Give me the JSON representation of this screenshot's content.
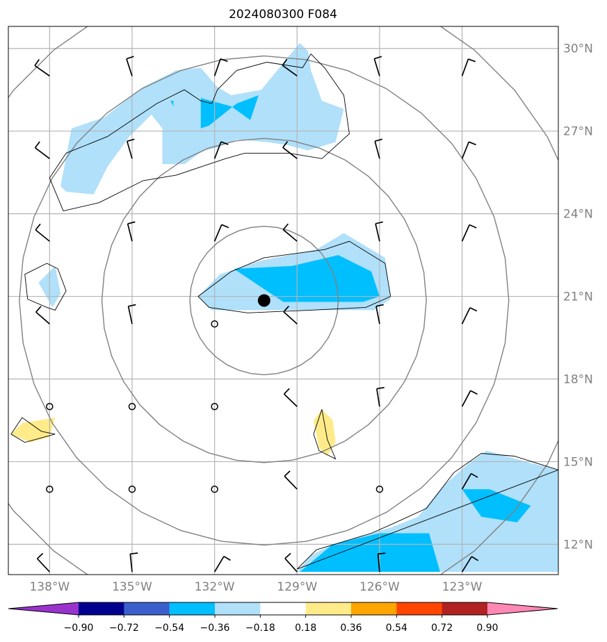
{
  "chart_data": {
    "type": "map",
    "title": "2024080300 F084",
    "map": {
      "lon_range": [
        -139.5,
        -119.5
      ],
      "lat_range": [
        10.9,
        30.8
      ],
      "lat_ticks": [
        {
          "lat": 30,
          "label": "30°N"
        },
        {
          "lat": 27,
          "label": "27°N"
        },
        {
          "lat": 24,
          "label": "24°N"
        },
        {
          "lat": 21,
          "label": "21°N"
        },
        {
          "lat": 18,
          "label": "18°N"
        },
        {
          "lat": 15,
          "label": "15°N"
        },
        {
          "lat": 12,
          "label": "12°N"
        }
      ],
      "lon_ticks": [
        {
          "lon": -138,
          "label": "138°W"
        },
        {
          "lon": -135,
          "label": "135°W"
        },
        {
          "lon": -132,
          "label": "132°W"
        },
        {
          "lon": -129,
          "label": "129°W"
        },
        {
          "lon": -126,
          "label": "126°W"
        },
        {
          "lon": -123,
          "label": "123°W"
        }
      ],
      "grid": true,
      "center": {
        "lon": -130.2,
        "lat": 20.85
      },
      "range_rings_deg": [
        2.7,
        5.9,
        8.9,
        11.9
      ]
    },
    "colorbar": {
      "ticks": [
        "−0.90",
        "−0.72",
        "−0.54",
        "−0.36",
        "−0.18",
        "0.18",
        "0.36",
        "0.54",
        "0.72",
        "0.90"
      ],
      "colors": [
        "#9933cc",
        "#000090",
        "#3a5fcd",
        "#00bfff",
        "#b0e0fa",
        "#ffffff",
        "#ffeb8a",
        "#ffa500",
        "#ff4500",
        "#b22222",
        "#ff88b4"
      ],
      "extend": "both"
    },
    "fields": [
      {
        "level": "-0.36",
        "color": "#b0e0fa",
        "polygons": [
          [
            [
              -137.6,
              25.0
            ],
            [
              -137.2,
              27.1
            ],
            [
              -136.0,
              27.5
            ],
            [
              -134.6,
              28.6
            ],
            [
              -133.4,
              29.2
            ],
            [
              -132.5,
              29.3
            ],
            [
              -131.9,
              28.6
            ],
            [
              -131.4,
              28.3
            ],
            [
              -130.3,
              28.5
            ],
            [
              -129.4,
              29.6
            ],
            [
              -128.9,
              30.2
            ],
            [
              -128.6,
              29.9
            ],
            [
              -128.5,
              29.2
            ],
            [
              -128.1,
              28.1
            ],
            [
              -127.3,
              27.8
            ],
            [
              -127.6,
              26.6
            ],
            [
              -128.6,
              26.3
            ],
            [
              -129.4,
              26.5
            ],
            [
              -130.1,
              26.6
            ],
            [
              -131.2,
              26.7
            ],
            [
              -131.9,
              26.4
            ],
            [
              -132.4,
              26.3
            ],
            [
              -133.1,
              25.8
            ],
            [
              -133.9,
              25.8
            ],
            [
              -133.9,
              27.1
            ],
            [
              -134.3,
              27.6
            ],
            [
              -135.1,
              26.8
            ],
            [
              -135.9,
              25.7
            ],
            [
              -136.4,
              24.7
            ],
            [
              -137.4,
              24.8
            ]
          ],
          [
            [
              -138.4,
              21.5
            ],
            [
              -137.9,
              20.6
            ],
            [
              -137.6,
              21.1
            ],
            [
              -137.8,
              22.1
            ]
          ],
          [
            [
              -132.6,
              21.0
            ],
            [
              -131.8,
              21.8
            ],
            [
              -130.3,
              22.3
            ],
            [
              -128.3,
              22.7
            ],
            [
              -127.3,
              23.3
            ],
            [
              -125.8,
              22.4
            ],
            [
              -125.6,
              20.9
            ],
            [
              -126.2,
              20.5
            ],
            [
              -128.0,
              20.5
            ],
            [
              -130.3,
              20.5
            ],
            [
              -132.1,
              20.5
            ]
          ],
          [
            [
              -129.0,
              11.0
            ],
            [
              -128.5,
              11.6
            ],
            [
              -127.7,
              12.0
            ],
            [
              -126.7,
              12.3
            ],
            [
              -125.6,
              12.6
            ],
            [
              -124.6,
              13.0
            ],
            [
              -123.7,
              14.1
            ],
            [
              -122.8,
              14.9
            ],
            [
              -122.1,
              15.4
            ],
            [
              -120.7,
              15.0
            ],
            [
              -119.5,
              14.7
            ],
            [
              -119.5,
              11.0
            ]
          ]
        ]
      },
      {
        "level": "-0.54",
        "color": "#00bfff",
        "polygons": [
          [
            [
              -132.5,
              28.2
            ],
            [
              -131.4,
              27.9
            ],
            [
              -130.7,
              27.4
            ],
            [
              -130.4,
              28.3
            ],
            [
              -131.2,
              28.0
            ],
            [
              -132.2,
              27.2
            ],
            [
              -132.5,
              27.1
            ]
          ],
          [
            [
              -133.6,
              28.1
            ],
            [
              -133.5,
              27.9
            ],
            [
              -133.5,
              28.1
            ]
          ],
          [
            [
              -131.3,
              22.0
            ],
            [
              -129.2,
              22.1
            ],
            [
              -127.5,
              22.5
            ],
            [
              -126.3,
              21.9
            ],
            [
              -126.0,
              21.0
            ],
            [
              -126.6,
              20.8
            ],
            [
              -128.0,
              20.8
            ],
            [
              -129.5,
              20.8
            ]
          ],
          [
            [
              -128.9,
              11.0
            ],
            [
              -127.7,
              12.0
            ],
            [
              -126.0,
              12.4
            ],
            [
              -124.2,
              12.4
            ],
            [
              -123.8,
              11.0
            ]
          ],
          [
            [
              -123.0,
              14.0
            ],
            [
              -122.0,
              14.0
            ],
            [
              -120.5,
              13.4
            ],
            [
              -121.0,
              12.8
            ],
            [
              -122.3,
              13.0
            ]
          ]
        ]
      },
      {
        "level": "0.18",
        "color": "#ffeb8a",
        "polygons": [
          [
            [
              -139.4,
              16.0
            ],
            [
              -138.7,
              15.7
            ],
            [
              -138.0,
              15.9
            ],
            [
              -137.8,
              16.6
            ],
            [
              -139.0,
              16.4
            ]
          ],
          [
            [
              -128.1,
              16.9
            ],
            [
              -127.7,
              16.5
            ],
            [
              -127.6,
              15.7
            ],
            [
              -127.9,
              15.2
            ],
            [
              -128.2,
              15.5
            ],
            [
              -128.4,
              16.5
            ]
          ]
        ]
      }
    ],
    "outlines": [
      [
        [
          -137.5,
          24.1
        ],
        [
          -136.2,
          24.4
        ],
        [
          -134.6,
          25.2
        ],
        [
          -133.4,
          25.4
        ],
        [
          -132.5,
          25.7
        ],
        [
          -131.6,
          26.0
        ],
        [
          -130.9,
          26.2
        ],
        [
          -129.3,
          26.2
        ],
        [
          -128.1,
          26.0
        ],
        [
          -127.1,
          26.9
        ],
        [
          -127.3,
          28.3
        ],
        [
          -128.0,
          29.3
        ],
        [
          -128.5,
          29.8
        ],
        [
          -128.8,
          29.3
        ],
        [
          -130.1,
          29.5
        ],
        [
          -131.2,
          29.2
        ],
        [
          -131.9,
          28.5
        ],
        [
          -132.1,
          28.0
        ],
        [
          -132.5,
          28.1
        ],
        [
          -133.1,
          28.5
        ],
        [
          -134.1,
          28.0
        ],
        [
          -135.0,
          27.4
        ],
        [
          -135.9,
          26.8
        ],
        [
          -137.4,
          26.2
        ],
        [
          -138.0,
          25.3
        ]
      ],
      [
        [
          -138.8,
          20.9
        ],
        [
          -138.1,
          20.6
        ],
        [
          -137.8,
          20.5
        ],
        [
          -137.4,
          21.2
        ],
        [
          -137.7,
          22.0
        ],
        [
          -138.1,
          22.2
        ],
        [
          -138.9,
          21.8
        ]
      ],
      [
        [
          -132.6,
          21.0
        ],
        [
          -131.4,
          21.9
        ],
        [
          -130.2,
          22.4
        ],
        [
          -128.0,
          22.7
        ],
        [
          -127.1,
          23.0
        ],
        [
          -125.8,
          22.2
        ],
        [
          -125.6,
          21.0
        ],
        [
          -126.5,
          20.6
        ],
        [
          -128.5,
          20.5
        ],
        [
          -130.8,
          20.4
        ],
        [
          -132.2,
          20.6
        ]
      ],
      [
        [
          -139.4,
          16.0
        ],
        [
          -139.0,
          16.6
        ],
        [
          -138.3,
          16.1
        ],
        [
          -137.8,
          16.0
        ],
        [
          -138.9,
          15.7
        ]
      ],
      [
        [
          -127.6,
          15.1
        ],
        [
          -127.9,
          15.8
        ],
        [
          -128.1,
          16.9
        ],
        [
          -128.4,
          16.0
        ],
        [
          -128.2,
          15.4
        ]
      ],
      [
        [
          -129.0,
          11.1
        ],
        [
          -128.3,
          11.8
        ],
        [
          -126.3,
          12.4
        ],
        [
          -125.4,
          12.8
        ],
        [
          -124.3,
          13.3
        ],
        [
          -123.3,
          14.6
        ],
        [
          -122.3,
          15.3
        ],
        [
          -121.1,
          15.2
        ],
        [
          -119.5,
          14.7
        ]
      ]
    ],
    "storm_center": {
      "lon": -130.2,
      "lat": 20.85
    },
    "wind_barbs": [
      {
        "lon": -138,
        "lat": 29,
        "type": "barb"
      },
      {
        "lon": -135,
        "lat": 29,
        "type": "barb"
      },
      {
        "lon": -132,
        "lat": 29,
        "type": "barb"
      },
      {
        "lon": -129,
        "lat": 29,
        "type": "barb"
      },
      {
        "lon": -126,
        "lat": 29,
        "type": "barb"
      },
      {
        "lon": -123,
        "lat": 29,
        "type": "barb"
      },
      {
        "lon": -138,
        "lat": 26,
        "type": "barb"
      },
      {
        "lon": -135,
        "lat": 26,
        "type": "barb"
      },
      {
        "lon": -132,
        "lat": 26,
        "type": "barb"
      },
      {
        "lon": -129,
        "lat": 26,
        "type": "barb"
      },
      {
        "lon": -126,
        "lat": 26,
        "type": "barb"
      },
      {
        "lon": -123,
        "lat": 26,
        "type": "barb"
      },
      {
        "lon": -138,
        "lat": 23,
        "type": "barb"
      },
      {
        "lon": -135,
        "lat": 23,
        "type": "barb"
      },
      {
        "lon": -132,
        "lat": 23,
        "type": "barb"
      },
      {
        "lon": -129,
        "lat": 23,
        "type": "barb"
      },
      {
        "lon": -126,
        "lat": 23,
        "type": "barb"
      },
      {
        "lon": -123,
        "lat": 23,
        "type": "barb"
      },
      {
        "lon": -138,
        "lat": 20,
        "type": "barb"
      },
      {
        "lon": -135,
        "lat": 20,
        "type": "barb"
      },
      {
        "lon": -132,
        "lat": 20,
        "type": "calm"
      },
      {
        "lon": -129,
        "lat": 20,
        "type": "barb"
      },
      {
        "lon": -126,
        "lat": 20,
        "type": "barb"
      },
      {
        "lon": -123,
        "lat": 20,
        "type": "barb"
      },
      {
        "lon": -138,
        "lat": 17,
        "type": "calm"
      },
      {
        "lon": -135,
        "lat": 17,
        "type": "calm"
      },
      {
        "lon": -132,
        "lat": 17,
        "type": "calm"
      },
      {
        "lon": -129,
        "lat": 17,
        "type": "barb"
      },
      {
        "lon": -126,
        "lat": 17,
        "type": "barb"
      },
      {
        "lon": -123,
        "lat": 17,
        "type": "barb"
      },
      {
        "lon": -138,
        "lat": 14,
        "type": "calm"
      },
      {
        "lon": -135,
        "lat": 14,
        "type": "calm"
      },
      {
        "lon": -132,
        "lat": 14,
        "type": "calm"
      },
      {
        "lon": -129,
        "lat": 14,
        "type": "barb"
      },
      {
        "lon": -126,
        "lat": 14,
        "type": "calm"
      },
      {
        "lon": -123,
        "lat": 14,
        "type": "barb"
      },
      {
        "lon": -138,
        "lat": 11,
        "type": "barb"
      },
      {
        "lon": -135,
        "lat": 11,
        "type": "barb"
      },
      {
        "lon": -132,
        "lat": 11,
        "type": "barb"
      },
      {
        "lon": -129,
        "lat": 11,
        "type": "barb"
      },
      {
        "lon": -126,
        "lat": 11,
        "type": "barb"
      },
      {
        "lon": -123,
        "lat": 11,
        "type": "barb"
      }
    ]
  }
}
